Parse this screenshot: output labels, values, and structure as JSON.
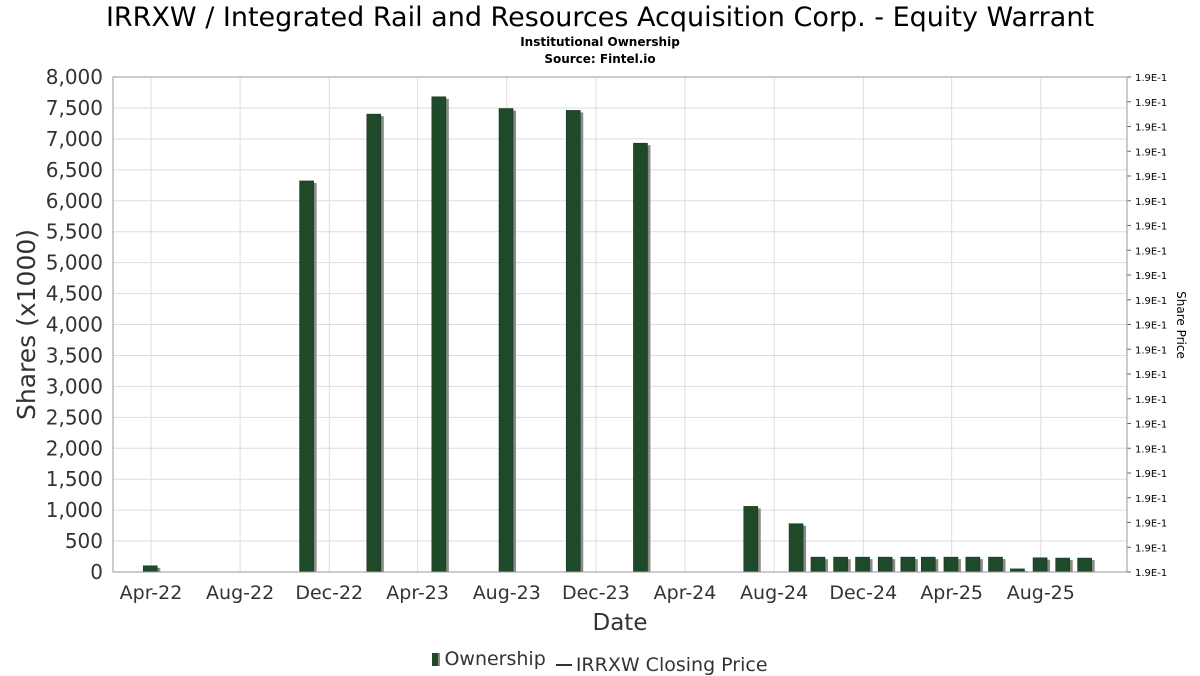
{
  "header": {
    "title": "IRRXW / Integrated Rail and Resources Acquisition Corp. - Equity Warrant",
    "subtitle": "Institutional Ownership",
    "source": "Source: Fintel.io"
  },
  "legend": {
    "ownership": "Ownership",
    "price": "IRRXW Closing Price"
  },
  "colors": {
    "bar": "#1e4a2a",
    "bar_shadow": "#8a8a8a",
    "grid": "#dddddd",
    "axis_text": "#333333"
  },
  "chart_data": {
    "type": "bar",
    "title": "IRRXW / Integrated Rail and Resources Acquisition Corp. - Equity Warrant",
    "subtitle": "Institutional Ownership",
    "xlabel": "Date",
    "ylabel": "Shares (x1000)",
    "y2label": "Share Price",
    "ylim": [
      0,
      8000
    ],
    "y_ticks": [
      "0",
      "500",
      "1,000",
      "1,500",
      "2,000",
      "2,500",
      "3,000",
      "3,500",
      "4,000",
      "4,500",
      "5,000",
      "5,500",
      "6,000",
      "6,500",
      "7,000",
      "7,500",
      "8,000"
    ],
    "y2_tick_label": "1.9E-1",
    "y2_tick_count": 21,
    "x_ticks": [
      "Apr-22",
      "Aug-22",
      "Dec-22",
      "Apr-23",
      "Aug-23",
      "Dec-23",
      "Apr-24",
      "Aug-24",
      "Dec-24",
      "Apr-25",
      "Aug-25"
    ],
    "x_tick_dates": [
      "2022-04-01",
      "2022-08-01",
      "2022-12-01",
      "2023-04-01",
      "2023-08-01",
      "2023-12-01",
      "2024-04-01",
      "2024-08-01",
      "2024-12-01",
      "2025-04-01",
      "2025-08-01"
    ],
    "x_range": [
      "2022-02-08",
      "2025-11-27"
    ],
    "grid": true,
    "legend_position": "bottom",
    "series": [
      {
        "name": "Ownership",
        "type": "bar",
        "x": [
          "2022-03-31",
          "2022-10-31",
          "2023-01-31",
          "2023-04-30",
          "2023-07-31",
          "2023-10-31",
          "2024-01-31",
          "2024-06-30",
          "2024-08-31",
          "2024-09-30",
          "2024-10-31",
          "2024-11-30",
          "2024-12-31",
          "2025-01-31",
          "2025-02-28",
          "2025-03-31",
          "2025-04-30",
          "2025-05-31",
          "2025-06-30",
          "2025-07-31",
          "2025-08-31",
          "2025-09-30"
        ],
        "values": [
          100,
          6320,
          7400,
          7680,
          7490,
          7460,
          6930,
          1060,
          780,
          240,
          240,
          240,
          240,
          240,
          240,
          240,
          240,
          240,
          50,
          230,
          225,
          225
        ]
      },
      {
        "name": "IRRXW Closing Price",
        "type": "line",
        "x": [],
        "values": []
      }
    ]
  }
}
